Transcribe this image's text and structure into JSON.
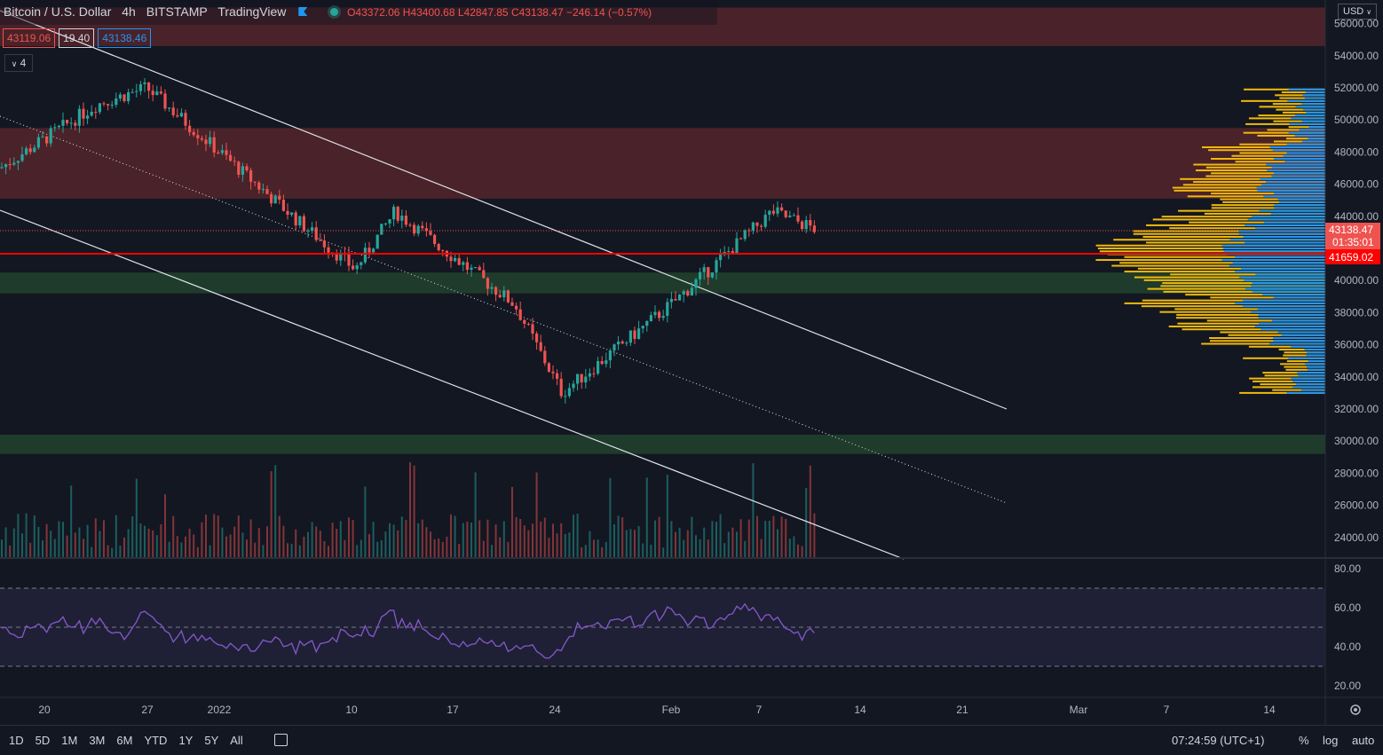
{
  "legend": {
    "symbol": "Bitcoin / U.S. Dollar",
    "interval": "4h",
    "exchange": "BITSTAMP",
    "provider": "TradingView",
    "open": "O43372.06",
    "high": "H43400.68",
    "low": "L42847.85",
    "close": "C43138.47",
    "change": "−246.14 (−0.57%)"
  },
  "quote": {
    "bid": "43119.06",
    "spread": "19.40",
    "ask": "43138.46"
  },
  "indicator_collapse": "4",
  "currency": "USD",
  "price_axis": [
    "56000.00",
    "54000.00",
    "52000.00",
    "50000.00",
    "48000.00",
    "46000.00",
    "44000.00",
    "40000.00",
    "38000.00",
    "36000.00",
    "34000.00",
    "32000.00",
    "30000.00",
    "28000.00",
    "26000.00",
    "24000.00"
  ],
  "rsi_axis": [
    "80.00",
    "60.00",
    "40.00",
    "20.00"
  ],
  "time_axis": [
    "20",
    "27",
    "2022",
    "10",
    "17",
    "24",
    "Feb",
    "7",
    "14",
    "21",
    "Mar",
    "7",
    "14"
  ],
  "last_price": {
    "value": "43138.47",
    "countdown": "01:35:01",
    "color": "#ef5350"
  },
  "hline_price": {
    "value": "41659.02",
    "color": "#ff0000"
  },
  "ranges": [
    "1D",
    "5D",
    "1M",
    "3M",
    "6M",
    "YTD",
    "1Y",
    "5Y",
    "All"
  ],
  "clock": "07:24:59 (UTC+1)",
  "scale_buttons": [
    "%",
    "log",
    "auto"
  ],
  "colors": {
    "up": "#26a69a",
    "down": "#ef5350",
    "rsi": "#7e57c2",
    "resistance_zone": "#4a2229",
    "support_zone": "#1e3b2b",
    "vp_up": "#f0b90b",
    "vp_down": "#2196f3"
  },
  "chart_data": {
    "type": "candlestick",
    "price_range": [
      22500,
      56500
    ],
    "resistance_zones": [
      [
        54600,
        57000
      ],
      [
        45100,
        49500
      ]
    ],
    "support_zones": [
      [
        39200,
        40500
      ],
      [
        29200,
        30400
      ]
    ],
    "horizontal_line": 41659.02,
    "rsi_levels": [
      70,
      50,
      30
    ],
    "key_points": [
      {
        "label": "Dec 17",
        "price": 47000
      },
      {
        "label": "Dec 24",
        "price": 51000
      },
      {
        "label": "Dec 27",
        "price": 52000
      },
      {
        "label": "Jan 5",
        "price": 43500
      },
      {
        "label": "Jan 10",
        "price": 40700
      },
      {
        "label": "Jan 13",
        "price": 44300
      },
      {
        "label": "Jan 21",
        "price": 38500
      },
      {
        "label": "Jan 24",
        "price": 33000
      },
      {
        "label": "Feb 1",
        "price": 38700
      },
      {
        "label": "Feb 4",
        "price": 41500
      },
      {
        "label": "Feb 7",
        "price": 44300
      },
      {
        "label": "Feb 10",
        "price": 43138.47
      }
    ]
  }
}
